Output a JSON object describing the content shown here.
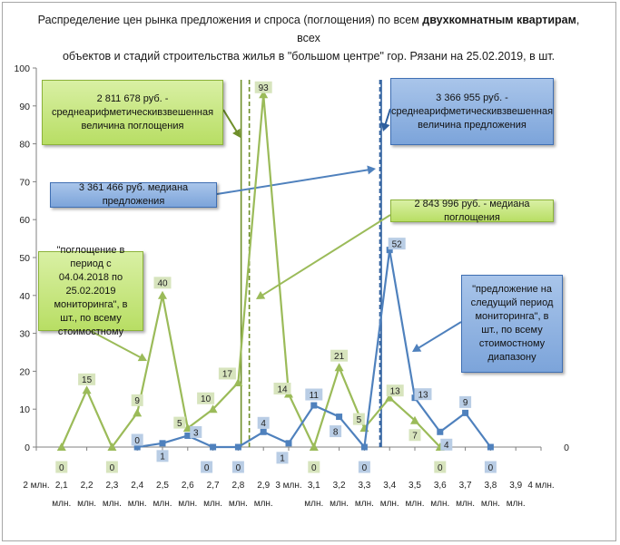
{
  "title": {
    "line1_pre": "Распределение цен рынка предложения и спроса (поглощения) по всем ",
    "line1_bold": "двухкомнатным квартирам",
    "line1_post": ",  всех",
    "line2": "объектов и стадий строительства жилья в \"большом центре\" гор. Рязани  на 25.02.2019, в шт."
  },
  "colors": {
    "green": "#9bbb59",
    "green_dark": "#6f8f2a",
    "blue": "#4f81bd",
    "blue_dark": "#2e5f9e",
    "label_green_bg": "#d7e4bd",
    "label_blue_bg": "#b9cde5"
  },
  "annotations": {
    "absorption_mean": "2 811 678 руб. - среднеарифметическивзвешенная величина поглощения",
    "offer_mean": "3 366 955 руб. - среднеарифметическивзвешенная величина предложения",
    "offer_median": "3 361 466 руб. медиана предложения",
    "absorption_median": "2 843 996 руб. - медиана поглощения",
    "absorption_series_note": "\"поглощение в период с 04.04.2018 по 25.02.2019 мониторинга\", в шт., по всему стоимостному",
    "offer_series_note": "\"предложение на следущий период мониторинга\", в шт., по всему стоимостному диапазону"
  },
  "chart_data": {
    "type": "line",
    "x_tick_labels": [
      [
        "2 млн."
      ],
      [
        "2,1",
        "млн."
      ],
      [
        "2,2",
        "млн."
      ],
      [
        "2,3",
        "млн."
      ],
      [
        "2,4",
        "млн."
      ],
      [
        "2,5",
        "млн."
      ],
      [
        "2,6",
        "млн."
      ],
      [
        "2,7",
        "млн."
      ],
      [
        "2,8",
        "млн."
      ],
      [
        "2,9",
        "млн."
      ],
      [
        "3 млн."
      ],
      [
        "3,1",
        "млн."
      ],
      [
        "3,2",
        "млн."
      ],
      [
        "3,3",
        "млн."
      ],
      [
        "3,4",
        "млн."
      ],
      [
        "3,5",
        "млн."
      ],
      [
        "3,6",
        "млн."
      ],
      [
        "3,7",
        "млн."
      ],
      [
        "3,8",
        "млн."
      ],
      [
        "3,9",
        "млн."
      ],
      [
        "4 млн."
      ]
    ],
    "x_range": [
      2.0,
      4.0
    ],
    "ylim": [
      0,
      100
    ],
    "y_ticks": [
      0,
      10,
      20,
      30,
      40,
      50,
      60,
      70,
      80,
      90,
      100
    ],
    "right_axis_label": "0",
    "series": [
      {
        "x": [
          2.1,
          2.2,
          2.3,
          2.4,
          2.5,
          2.6,
          2.7,
          2.8,
          2.9,
          3.0,
          3.1,
          3.2,
          3.3,
          3.4,
          3.5,
          3.6
        ],
        "y": [
          0,
          15,
          0,
          9,
          40,
          5,
          10,
          17,
          93,
          14,
          0,
          21,
          5,
          13,
          7,
          0
        ],
        "labels": [
          "0",
          "15",
          "0",
          "9",
          "40",
          "5",
          "10",
          "17",
          "93",
          "14",
          "0",
          "21",
          "5",
          "13",
          "7",
          "0"
        ],
        "color": "#9bbb59",
        "marker": "triangle"
      },
      {
        "x": [
          2.4,
          2.5,
          2.6,
          2.7,
          2.8,
          2.9,
          3.0,
          3.1,
          3.2,
          3.3,
          3.4,
          3.5,
          3.6,
          3.7,
          3.8
        ],
        "y": [
          0,
          1,
          3,
          0,
          0,
          4,
          1,
          11,
          8,
          0,
          52,
          13,
          4,
          9,
          0
        ],
        "labels": [
          "0",
          "1",
          "3",
          "0",
          "0",
          "4",
          "1",
          "11",
          "8",
          "0",
          "52",
          "13",
          "4",
          "9",
          "0"
        ],
        "color": "#4f81bd",
        "marker": "square"
      }
    ],
    "reference_lines": [
      {
        "x": 2.81168,
        "style": "solid",
        "color": "#6f8f2a"
      },
      {
        "x": 2.844,
        "style": "dashed",
        "color": "#6f8f2a"
      },
      {
        "x": 3.36147,
        "style": "dashed",
        "color": "#2e5f9e"
      },
      {
        "x": 3.36696,
        "style": "solid",
        "color": "#2e5f9e"
      }
    ]
  }
}
